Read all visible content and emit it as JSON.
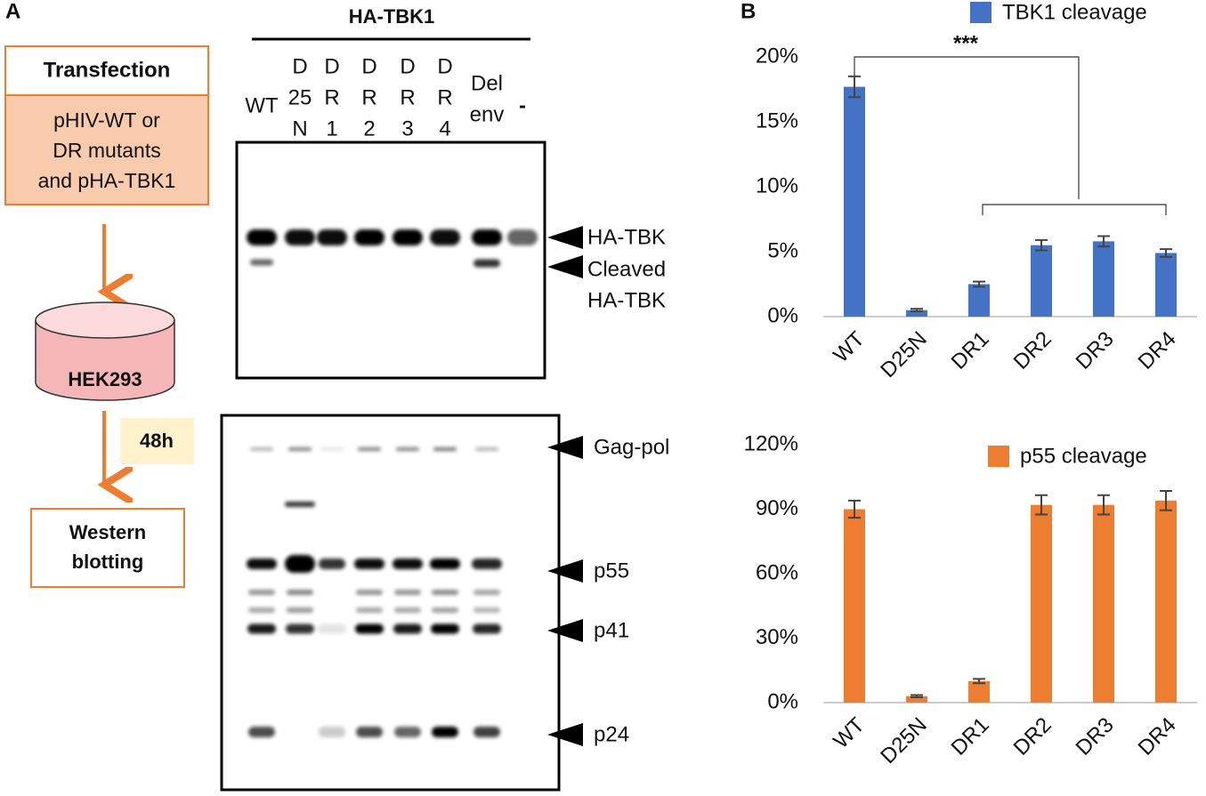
{
  "panel_a": {
    "label": "A",
    "flow": {
      "transfection": "Transfection",
      "plasmids": [
        "pHIV-WT or",
        "DR mutants",
        "and pHA-TBK1"
      ],
      "cells": "HEK293",
      "time": "48h",
      "readout": [
        "Western",
        "blotting"
      ]
    },
    "blot": {
      "header": "HA-TBK1",
      "lanes": [
        [
          "WT"
        ],
        [
          "D",
          "25",
          "N"
        ],
        [
          "D",
          "R",
          "1"
        ],
        [
          "D",
          "R",
          "2"
        ],
        [
          "D",
          "R",
          "3"
        ],
        [
          "D",
          "R",
          "4"
        ],
        [
          "Del",
          "env"
        ],
        [
          "-"
        ]
      ],
      "top_labels": [
        [
          "HA-TBK"
        ],
        [
          "Cleaved",
          "HA-TBK"
        ]
      ],
      "bottom_labels": [
        "Gag-pol",
        "p55",
        "p41",
        "p24"
      ]
    }
  },
  "panel_b": {
    "label": "B"
  },
  "chart_data": [
    {
      "type": "bar",
      "categories": [
        "WT",
        "D25N",
        "DR1",
        "DR2",
        "DR3",
        "DR4"
      ],
      "series": [
        {
          "name": "TBK1 cleavage",
          "color": "#4472c4",
          "values": [
            17.7,
            0.5,
            2.5,
            5.5,
            5.8,
            4.9
          ],
          "errors": [
            0.8,
            0.1,
            0.2,
            0.4,
            0.4,
            0.3
          ]
        }
      ],
      "ylim": [
        0,
        20
      ],
      "yticks": [
        {
          "value": 0,
          "label": "0%"
        },
        {
          "value": 5,
          "label": "5%"
        },
        {
          "value": 10,
          "label": "10%"
        },
        {
          "value": 15,
          "label": "15%"
        },
        {
          "value": 20,
          "label": "20%"
        }
      ],
      "annotation": "***",
      "legend": "top-right",
      "grid": false
    },
    {
      "type": "bar",
      "categories": [
        "WT",
        "D25N",
        "DR1",
        "DR2",
        "DR3",
        "DR4"
      ],
      "series": [
        {
          "name": "p55 cleavage",
          "color": "#ed7d31",
          "values": [
            90,
            3,
            10,
            92,
            92,
            94
          ],
          "errors": [
            4,
            0.5,
            1,
            4.5,
            4.5,
            4.5
          ]
        }
      ],
      "ylim": [
        0,
        120
      ],
      "yticks": [
        {
          "value": 0,
          "label": "0%"
        },
        {
          "value": 30,
          "label": "30%"
        },
        {
          "value": 60,
          "label": "60%"
        },
        {
          "value": 90,
          "label": "90%"
        },
        {
          "value": 120,
          "label": "120%"
        }
      ],
      "legend": "top-right",
      "grid": false
    }
  ]
}
